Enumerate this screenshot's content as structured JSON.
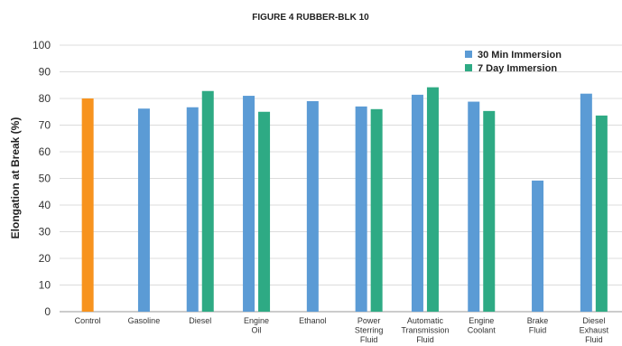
{
  "chart_data": {
    "type": "bar",
    "title": "FIGURE 4 RUBBER-BLK 10",
    "ylabel": "Elongation at Break (%)",
    "xlabel": "",
    "ylim": [
      0,
      100
    ],
    "yticks": [
      0,
      10,
      20,
      30,
      40,
      50,
      60,
      70,
      80,
      90,
      100
    ],
    "grid": "horizontal",
    "legend_position": "top-right",
    "categories": [
      [
        "Control"
      ],
      [
        "Gasoline"
      ],
      [
        "Diesel"
      ],
      [
        "Engine",
        "Oil"
      ],
      [
        "Ethanol"
      ],
      [
        "Power",
        "Sterring",
        "Fluid"
      ],
      [
        "Automatic",
        "Transmission",
        "Fluid"
      ],
      [
        "Engine",
        "Coolant"
      ],
      [
        "Brake",
        "Fluid"
      ],
      [
        "Diesel",
        "Exhaust",
        "Fluid"
      ]
    ],
    "control": {
      "value": 80,
      "color": "#f7931e"
    },
    "series": [
      {
        "name": "30 Min Immersion",
        "color": "#5b9bd5",
        "values": [
          null,
          76.2,
          76.7,
          81.0,
          79.0,
          77.0,
          81.4,
          78.8,
          49.2,
          81.8
        ]
      },
      {
        "name": "7 Day Immersion",
        "color": "#2eaa84",
        "values": [
          null,
          null,
          82.8,
          75.0,
          null,
          76.0,
          84.2,
          75.3,
          null,
          73.6
        ]
      }
    ]
  }
}
